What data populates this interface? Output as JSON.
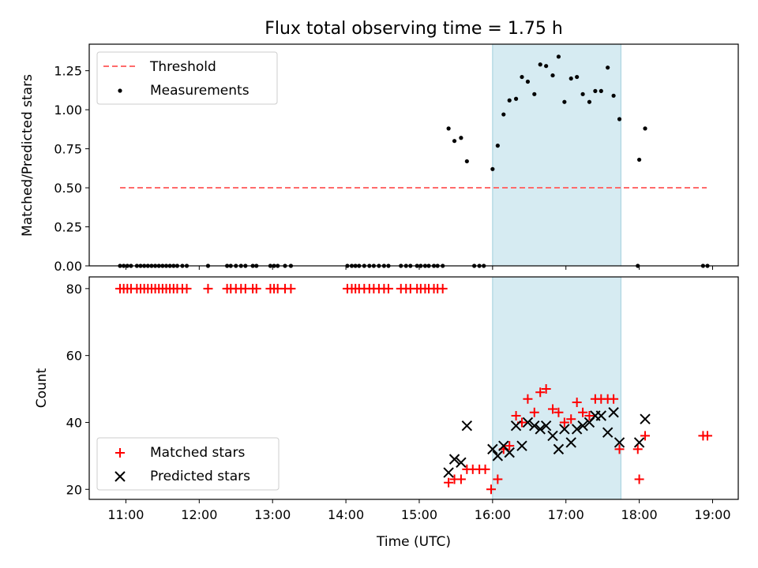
{
  "chart_data": [
    {
      "type": "scatter",
      "title": "Flux total observing time = 1.75 h",
      "xlabel": "",
      "ylabel": "Matched/Predicted stars",
      "xlim": [
        10.5,
        19.35
      ],
      "ylim": [
        0,
        1.42
      ],
      "yticks": [
        "0.00",
        "0.25",
        "0.50",
        "0.75",
        "1.00",
        "1.25"
      ],
      "shaded_span": {
        "x": [
          16.0,
          17.75
        ],
        "color": "#add8e6"
      },
      "legend": {
        "placement": "upper-left",
        "entries": [
          "Threshold",
          "Measurements"
        ]
      },
      "series": [
        {
          "name": "Threshold",
          "style": "dashed-line",
          "color": "#ff6b6b",
          "points": [
            [
              10.92,
              0.5
            ],
            [
              18.92,
              0.5
            ]
          ]
        },
        {
          "name": "Measurements",
          "style": "dot",
          "color": "#000000",
          "points": [
            [
              10.92,
              0
            ],
            [
              10.97,
              0
            ],
            [
              11.02,
              0
            ],
            [
              11.07,
              0
            ],
            [
              11.15,
              0
            ],
            [
              11.2,
              0
            ],
            [
              11.25,
              0
            ],
            [
              11.3,
              0
            ],
            [
              11.35,
              0
            ],
            [
              11.4,
              0
            ],
            [
              11.45,
              0
            ],
            [
              11.5,
              0
            ],
            [
              11.55,
              0
            ],
            [
              11.6,
              0
            ],
            [
              11.65,
              0
            ],
            [
              11.7,
              0
            ],
            [
              11.77,
              0
            ],
            [
              11.83,
              0
            ],
            [
              12.12,
              0
            ],
            [
              12.38,
              0
            ],
            [
              12.43,
              0
            ],
            [
              12.5,
              0
            ],
            [
              12.57,
              0
            ],
            [
              12.63,
              0
            ],
            [
              12.73,
              0
            ],
            [
              12.78,
              0
            ],
            [
              12.97,
              0
            ],
            [
              13.02,
              0
            ],
            [
              13.07,
              0
            ],
            [
              13.17,
              0
            ],
            [
              13.25,
              0
            ],
            [
              14.02,
              0
            ],
            [
              14.08,
              0
            ],
            [
              14.13,
              0
            ],
            [
              14.18,
              0
            ],
            [
              14.25,
              0
            ],
            [
              14.32,
              0
            ],
            [
              14.38,
              0
            ],
            [
              14.45,
              0
            ],
            [
              14.52,
              0
            ],
            [
              14.58,
              0
            ],
            [
              14.75,
              0
            ],
            [
              14.82,
              0
            ],
            [
              14.88,
              0
            ],
            [
              14.97,
              0
            ],
            [
              15.02,
              0
            ],
            [
              15.08,
              0
            ],
            [
              15.13,
              0
            ],
            [
              15.2,
              0
            ],
            [
              15.25,
              0
            ],
            [
              15.32,
              0
            ],
            [
              15.4,
              0.88
            ],
            [
              15.48,
              0.8
            ],
            [
              15.57,
              0.82
            ],
            [
              15.65,
              0.67
            ],
            [
              15.75,
              0
            ],
            [
              15.82,
              0
            ],
            [
              15.88,
              0
            ],
            [
              16.0,
              0.62
            ],
            [
              16.07,
              0.77
            ],
            [
              16.15,
              0.97
            ],
            [
              16.23,
              1.06
            ],
            [
              16.32,
              1.07
            ],
            [
              16.4,
              1.21
            ],
            [
              16.48,
              1.18
            ],
            [
              16.57,
              1.1
            ],
            [
              16.65,
              1.29
            ],
            [
              16.73,
              1.28
            ],
            [
              16.82,
              1.22
            ],
            [
              16.9,
              1.34
            ],
            [
              16.98,
              1.05
            ],
            [
              17.07,
              1.2
            ],
            [
              17.15,
              1.21
            ],
            [
              17.23,
              1.1
            ],
            [
              17.32,
              1.05
            ],
            [
              17.4,
              1.12
            ],
            [
              17.48,
              1.12
            ],
            [
              17.57,
              1.27
            ],
            [
              17.65,
              1.09
            ],
            [
              17.73,
              0.94
            ],
            [
              17.98,
              0
            ],
            [
              18.0,
              0.68
            ],
            [
              18.08,
              0.88
            ],
            [
              18.87,
              0
            ],
            [
              18.93,
              0
            ]
          ]
        }
      ]
    },
    {
      "type": "scatter",
      "title": "",
      "xlabel": "Time (UTC)",
      "ylabel": "Count",
      "xlim": [
        10.5,
        19.35
      ],
      "ylim": [
        17,
        83.5
      ],
      "yticks": [
        "20",
        "40",
        "60",
        "80"
      ],
      "xticks": [
        "11:00",
        "12:00",
        "13:00",
        "14:00",
        "15:00",
        "16:00",
        "17:00",
        "18:00",
        "19:00"
      ],
      "shaded_span": {
        "x": [
          16.0,
          17.75
        ],
        "color": "#add8e6"
      },
      "legend": {
        "placement": "lower-left",
        "entries": [
          "Matched stars",
          "Predicted stars"
        ]
      },
      "series": [
        {
          "name": "Matched stars",
          "marker": "plus",
          "color": "#ff0000",
          "points": [
            [
              10.92,
              80
            ],
            [
              10.97,
              80
            ],
            [
              11.02,
              80
            ],
            [
              11.07,
              80
            ],
            [
              11.15,
              80
            ],
            [
              11.2,
              80
            ],
            [
              11.25,
              80
            ],
            [
              11.3,
              80
            ],
            [
              11.35,
              80
            ],
            [
              11.4,
              80
            ],
            [
              11.45,
              80
            ],
            [
              11.5,
              80
            ],
            [
              11.55,
              80
            ],
            [
              11.6,
              80
            ],
            [
              11.65,
              80
            ],
            [
              11.7,
              80
            ],
            [
              11.77,
              80
            ],
            [
              11.83,
              80
            ],
            [
              12.12,
              80
            ],
            [
              12.38,
              80
            ],
            [
              12.43,
              80
            ],
            [
              12.5,
              80
            ],
            [
              12.57,
              80
            ],
            [
              12.63,
              80
            ],
            [
              12.73,
              80
            ],
            [
              12.78,
              80
            ],
            [
              12.97,
              80
            ],
            [
              13.02,
              80
            ],
            [
              13.07,
              80
            ],
            [
              13.17,
              80
            ],
            [
              13.25,
              80
            ],
            [
              14.02,
              80
            ],
            [
              14.08,
              80
            ],
            [
              14.13,
              80
            ],
            [
              14.18,
              80
            ],
            [
              14.25,
              80
            ],
            [
              14.32,
              80
            ],
            [
              14.38,
              80
            ],
            [
              14.45,
              80
            ],
            [
              14.52,
              80
            ],
            [
              14.58,
              80
            ],
            [
              14.75,
              80
            ],
            [
              14.82,
              80
            ],
            [
              14.88,
              80
            ],
            [
              14.97,
              80
            ],
            [
              15.02,
              80
            ],
            [
              15.08,
              80
            ],
            [
              15.13,
              80
            ],
            [
              15.2,
              80
            ],
            [
              15.25,
              80
            ],
            [
              15.32,
              80
            ],
            [
              15.4,
              22
            ],
            [
              15.48,
              23
            ],
            [
              15.57,
              23
            ],
            [
              15.65,
              26
            ],
            [
              15.73,
              26
            ],
            [
              15.82,
              26
            ],
            [
              15.9,
              26
            ],
            [
              15.98,
              20
            ],
            [
              16.07,
              23
            ],
            [
              16.15,
              32
            ],
            [
              16.23,
              33
            ],
            [
              16.32,
              42
            ],
            [
              16.4,
              40
            ],
            [
              16.48,
              47
            ],
            [
              16.57,
              43
            ],
            [
              16.65,
              49
            ],
            [
              16.73,
              50
            ],
            [
              16.82,
              44
            ],
            [
              16.9,
              43
            ],
            [
              16.98,
              40
            ],
            [
              17.07,
              41
            ],
            [
              17.15,
              46
            ],
            [
              17.23,
              43
            ],
            [
              17.32,
              42
            ],
            [
              17.4,
              47
            ],
            [
              17.48,
              47
            ],
            [
              17.57,
              47
            ],
            [
              17.65,
              47
            ],
            [
              17.73,
              32
            ],
            [
              17.98,
              32
            ],
            [
              18.0,
              23
            ],
            [
              18.08,
              36
            ],
            [
              18.87,
              36
            ],
            [
              18.93,
              36
            ]
          ]
        },
        {
          "name": "Predicted stars",
          "marker": "x",
          "color": "#000000",
          "points": [
            [
              15.4,
              25
            ],
            [
              15.48,
              29
            ],
            [
              15.57,
              28
            ],
            [
              15.65,
              39
            ],
            [
              16.0,
              32
            ],
            [
              16.07,
              30
            ],
            [
              16.15,
              33
            ],
            [
              16.23,
              31
            ],
            [
              16.32,
              39
            ],
            [
              16.4,
              33
            ],
            [
              16.48,
              40
            ],
            [
              16.57,
              39
            ],
            [
              16.65,
              38
            ],
            [
              16.73,
              39
            ],
            [
              16.82,
              36
            ],
            [
              16.9,
              32
            ],
            [
              16.98,
              38
            ],
            [
              17.07,
              34
            ],
            [
              17.15,
              38
            ],
            [
              17.23,
              39
            ],
            [
              17.32,
              40
            ],
            [
              17.4,
              42
            ],
            [
              17.48,
              42
            ],
            [
              17.57,
              37
            ],
            [
              17.65,
              43
            ],
            [
              17.73,
              34
            ],
            [
              18.0,
              34
            ],
            [
              18.08,
              41
            ]
          ]
        }
      ]
    }
  ]
}
